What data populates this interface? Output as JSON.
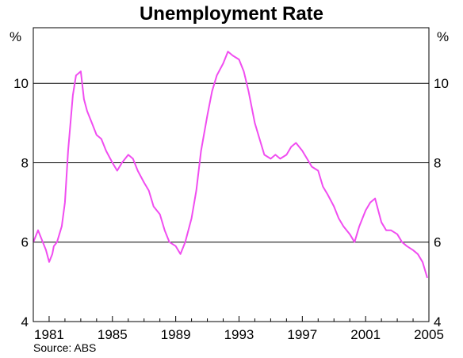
{
  "chart_data": {
    "type": "line",
    "title": "Unemployment Rate",
    "ylabel_left": "%",
    "ylabel_right": "%",
    "xlabel": "",
    "source": "Source: ABS",
    "ylim": [
      4,
      11.4
    ],
    "xlim": [
      1980.0,
      2005.0
    ],
    "yticks": [
      4,
      6,
      8,
      10
    ],
    "xticks": [
      1981,
      1985,
      1989,
      1993,
      1997,
      2001,
      2005
    ],
    "grid": true,
    "line_color": "#f04df0",
    "series": [
      {
        "x": [
          1980.0,
          1980.3,
          1980.5,
          1980.8,
          1981.0,
          1981.2,
          1981.3,
          1981.5,
          1981.8,
          1982.0,
          1982.2,
          1982.5,
          1982.7,
          1983.0,
          1983.2,
          1983.4,
          1983.7,
          1984.0,
          1984.3,
          1984.6,
          1985.0,
          1985.3,
          1985.6,
          1986.0,
          1986.3,
          1986.6,
          1987.0,
          1987.3,
          1987.6,
          1988.0,
          1988.3,
          1988.6,
          1989.0,
          1989.3,
          1989.6,
          1990.0,
          1990.3,
          1990.6,
          1991.0,
          1991.3,
          1991.6,
          1992.0,
          1992.3,
          1992.6,
          1993.0,
          1993.3,
          1993.6,
          1994.0,
          1994.3,
          1994.6,
          1995.0,
          1995.3,
          1995.6,
          1996.0,
          1996.3,
          1996.6,
          1997.0,
          1997.3,
          1997.6,
          1998.0,
          1998.3,
          1998.6,
          1999.0,
          1999.3,
          1999.6,
          2000.0,
          2000.3,
          2000.6,
          2001.0,
          2001.3,
          2001.6,
          2002.0,
          2002.3,
          2002.6,
          2003.0,
          2003.3,
          2003.6,
          2004.0,
          2004.3,
          2004.6,
          2004.9
        ],
        "values": [
          6.0,
          6.3,
          6.1,
          5.8,
          5.5,
          5.7,
          5.9,
          6.0,
          6.4,
          7.0,
          8.3,
          9.7,
          10.2,
          10.3,
          9.6,
          9.3,
          9.0,
          8.7,
          8.6,
          8.3,
          8.0,
          7.8,
          8.0,
          8.2,
          8.1,
          7.8,
          7.5,
          7.3,
          6.9,
          6.7,
          6.3,
          6.0,
          5.9,
          5.7,
          6.0,
          6.6,
          7.3,
          8.3,
          9.2,
          9.8,
          10.2,
          10.5,
          10.8,
          10.7,
          10.6,
          10.3,
          9.8,
          9.0,
          8.6,
          8.2,
          8.1,
          8.2,
          8.1,
          8.2,
          8.4,
          8.5,
          8.3,
          8.1,
          7.9,
          7.8,
          7.4,
          7.2,
          6.9,
          6.6,
          6.4,
          6.2,
          6.0,
          6.4,
          6.8,
          7.0,
          7.1,
          6.5,
          6.3,
          6.3,
          6.2,
          6.0,
          5.9,
          5.8,
          5.7,
          5.5,
          5.1
        ]
      }
    ]
  }
}
